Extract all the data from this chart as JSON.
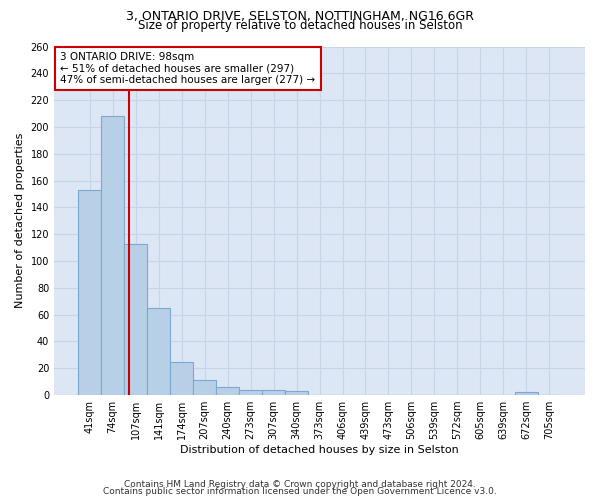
{
  "title_line1": "3, ONTARIO DRIVE, SELSTON, NOTTINGHAM, NG16 6GR",
  "title_line2": "Size of property relative to detached houses in Selston",
  "xlabel": "Distribution of detached houses by size in Selston",
  "ylabel": "Number of detached properties",
  "categories": [
    "41sqm",
    "74sqm",
    "107sqm",
    "141sqm",
    "174sqm",
    "207sqm",
    "240sqm",
    "273sqm",
    "307sqm",
    "340sqm",
    "373sqm",
    "406sqm",
    "439sqm",
    "473sqm",
    "506sqm",
    "539sqm",
    "572sqm",
    "605sqm",
    "639sqm",
    "672sqm",
    "705sqm"
  ],
  "values": [
    153,
    208,
    113,
    65,
    25,
    11,
    6,
    4,
    4,
    3,
    0,
    0,
    0,
    0,
    0,
    0,
    0,
    0,
    0,
    2,
    0
  ],
  "bar_color": "#b8cfe8",
  "bar_edge_color": "#7aaad0",
  "bar_edge_width": 0.8,
  "vline_color": "#cc0000",
  "annotation_text": "3 ONTARIO DRIVE: 98sqm\n← 51% of detached houses are smaller (297)\n47% of semi-detached houses are larger (277) →",
  "annotation_box_color": "#ffffff",
  "annotation_box_edge_color": "#cc0000",
  "ylim": [
    0,
    260
  ],
  "yticks": [
    0,
    20,
    40,
    60,
    80,
    100,
    120,
    140,
    160,
    180,
    200,
    220,
    240,
    260
  ],
  "grid_color": "#c8d4e8",
  "background_color": "#dce6f5",
  "footer_line1": "Contains HM Land Registry data © Crown copyright and database right 2024.",
  "footer_line2": "Contains public sector information licensed under the Open Government Licence v3.0.",
  "title_fontsize": 9,
  "subtitle_fontsize": 8.5,
  "axis_label_fontsize": 8,
  "tick_fontsize": 7,
  "annotation_fontsize": 7.5,
  "footer_fontsize": 6.5
}
